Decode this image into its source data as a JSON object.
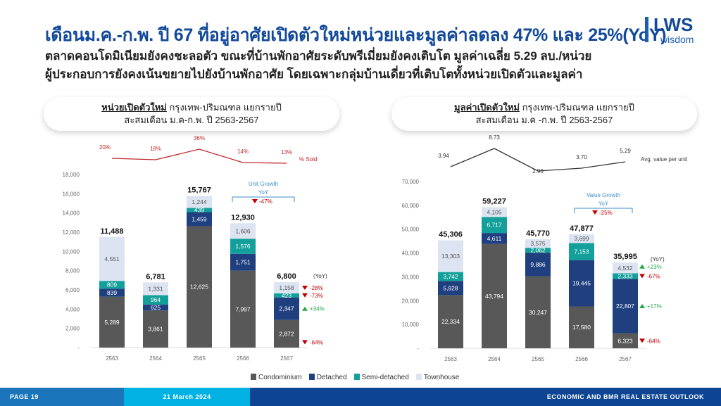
{
  "header": {
    "title": "เดือนม.ค.-ก.พ. ปี 67 ที่อยู่อาศัยเปิดตัวใหม่หน่วยและมูลค่าลดลง 47% และ 25%(YoY)",
    "subtitle_1": "ตลาดคอนโดมิเนียมยังคงชะลอตัว ขณะที่บ้านพักอาศัยระดับพรีเมี่ยมยังคงเติบโต มูลค่าเฉลี่ย 5.29 ลบ./หน่วย",
    "subtitle_2": "ผู้ประกอบการยังคงเน้นขยายไปยังบ้านพักอาศัย โดยเฉพาะกลุ่มบ้านเดี่ยวที่เติบโตทั้งหน่วยเปิดตัวและมูลค่า",
    "logo_main": "LWS",
    "logo_sub": "wisdom"
  },
  "panels": [
    {
      "bold": "หน่วยเปิดตัวใหม่",
      "rest": " กรุงเทพ-ปริมณฑล แยกรายปี",
      "line2": "สะสมเดือน ม.ค-ก.พ. ปี 2563-2567"
    },
    {
      "bold": "มูลค่าเปิดตัวใหม่",
      "rest": " กรุงเทพ-ปริมณฑล แยกรายปี",
      "line2": "สะสมเดือน ม.ค -ก.พ.  ปี 2563-2567"
    }
  ],
  "colors": {
    "Condominium": "#585858",
    "Detached": "#1f3f7f",
    "Semi-detached": "#13a09a",
    "Townhouse": "#dce4f1",
    "down": "#c00000",
    "up": "#22a84a",
    "line_red": "#c0282d",
    "growth": "#3a8fc8"
  },
  "chart_data": [
    {
      "type": "bar",
      "stacked": true,
      "title": "หน่วยเปิดตัวใหม่",
      "categories": [
        "2563",
        "2564",
        "2565",
        "2566",
        "2567"
      ],
      "ylim": [
        0,
        18000
      ],
      "yticks": [
        "-",
        "2,000",
        "4,000",
        "6,000",
        "8,000",
        "10,000",
        "12,000",
        "14,000",
        "16,000",
        "18,000"
      ],
      "series": [
        {
          "name": "Condominium",
          "values": [
            5289,
            3861,
            12625,
            7997,
            2872
          ],
          "labels": [
            "5,289",
            "3,861",
            "12,625",
            "7,997",
            "2,872"
          ]
        },
        {
          "name": "Detached",
          "values": [
            839,
            625,
            1459,
            1751,
            2347
          ],
          "labels": [
            "839",
            "625",
            "1,459",
            "1,751",
            "2,347"
          ]
        },
        {
          "name": "Semi-detached",
          "values": [
            809,
            964,
            439,
            1576,
            423
          ],
          "labels": [
            "809",
            "964",
            "439",
            "1,576",
            "423"
          ]
        },
        {
          "name": "Townhouse",
          "values": [
            4551,
            1331,
            1244,
            1606,
            1158
          ],
          "labels": [
            "4,551",
            "1,331",
            "1,244",
            "1,606",
            "1,158"
          ]
        }
      ],
      "totals": [
        "11,488",
        "6,781",
        "15,767",
        "12,930",
        "6,800"
      ],
      "line": {
        "name": "% Sold",
        "values": [
          20,
          18,
          36,
          14,
          13
        ],
        "labels": [
          "20%",
          "18%",
          "36%",
          "14%",
          "13%"
        ]
      },
      "growth": {
        "title_1": "Unit Growth",
        "title_2": "YoY",
        "value": "-47%"
      },
      "yoy": {
        "header": "(YoY)",
        "items": [
          {
            "series": "Townhouse",
            "value": "-28%",
            "dir": "down"
          },
          {
            "series": "Semi-detached",
            "value": "-73%",
            "dir": "down"
          },
          {
            "series": "Detached",
            "value": "+34%",
            "dir": "up"
          },
          {
            "series": "Condominium",
            "value": "-64%",
            "dir": "down"
          }
        ]
      }
    },
    {
      "type": "bar",
      "stacked": true,
      "title": "มูลค่าเปิดตัวใหม่",
      "categories": [
        "2563",
        "2564",
        "2565",
        "2566",
        "2567"
      ],
      "ylim": [
        0,
        70000
      ],
      "yticks": [
        "-",
        "10,000",
        "20,000",
        "30,000",
        "40,000",
        "50,000",
        "60,000",
        "70,000"
      ],
      "series": [
        {
          "name": "Condominium",
          "values": [
            22334,
            43794,
            30247,
            17580,
            6323
          ],
          "labels": [
            "22,334",
            "43,794",
            "30,247",
            "17,580",
            "6,323"
          ]
        },
        {
          "name": "Detached",
          "values": [
            5928,
            4611,
            9886,
            19445,
            22807
          ],
          "labels": [
            "5,928",
            "4,611",
            "9,886",
            "19,445",
            "22,807"
          ]
        },
        {
          "name": "Semi-detached",
          "values": [
            3742,
            6717,
            2062,
            7153,
            2333
          ],
          "labels": [
            "3,742",
            "6,717",
            "2,062",
            "7,153",
            "2,333"
          ]
        },
        {
          "name": "Townhouse",
          "values": [
            13303,
            4105,
            3575,
            3699,
            4532
          ],
          "labels": [
            "13,303",
            "4,105",
            "3,575",
            "3,699",
            "4,532"
          ]
        }
      ],
      "totals": [
        "45,306",
        "59,227",
        "45,770",
        "47,877",
        "35,995"
      ],
      "line": {
        "name": "Avg. value per unit",
        "values": [
          3.94,
          8.73,
          2.9,
          3.7,
          5.29
        ],
        "labels": [
          "3.94",
          "8.73",
          "2.90",
          "3.70",
          "5.29"
        ]
      },
      "growth": {
        "title_1": "Value Growth",
        "title_2": "YoY",
        "value": "-25%"
      },
      "yoy": {
        "header": "(YoY)",
        "items": [
          {
            "series": "Townhouse",
            "value": "+23%",
            "dir": "up"
          },
          {
            "series": "Semi-detached",
            "value": "-67%",
            "dir": "down"
          },
          {
            "series": "Detached",
            "value": "+17%",
            "dir": "up"
          },
          {
            "series": "Condominium",
            "value": "-64%",
            "dir": "down"
          }
        ]
      }
    }
  ],
  "legend": [
    "Condominium",
    "Detached",
    "Semi-detached",
    "Townhouse"
  ],
  "footer": {
    "page": "PAGE 19",
    "date": "21 March 2024",
    "report": "ECONOMIC AND BMR REAL ESTATE OUTLOOK"
  }
}
